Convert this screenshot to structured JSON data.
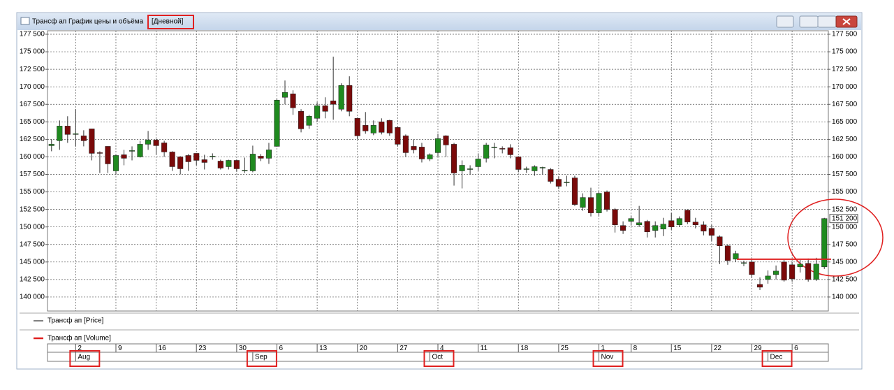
{
  "window_title": "Трансф ап График цены и объёма",
  "period": "[Дневной]",
  "chart_data": {
    "type": "candlestick",
    "series": [
      {
        "name": "Трансф ап [Price]",
        "color": "#000000",
        "up_color": "#1f8a1f",
        "down_color": "#7a0a0a",
        "open": [
          161600,
          162300,
          164400,
          163200,
          163000,
          164000,
          160600,
          161500,
          158000,
          160300,
          160800,
          160000,
          161800,
          162400,
          162000,
          160700,
          160000,
          160200,
          160500,
          159600,
          160000,
          159400,
          158600,
          159500,
          158000,
          158000,
          160100,
          159800,
          161500,
          168500,
          169000,
          166500,
          164500,
          165500,
          167300,
          168000,
          166800,
          170200,
          165500,
          164500,
          163400,
          165000,
          165200,
          164200,
          163000,
          161500,
          161400,
          159700,
          160600,
          163000,
          161800,
          158000,
          158200,
          158600,
          159800,
          161300,
          161200,
          161300,
          160000,
          158200,
          158000,
          158400,
          158200,
          156800,
          156300,
          157000,
          152800,
          154200,
          152000,
          155000,
          152500,
          150200,
          150800,
          150300,
          150800,
          149500,
          149700,
          150900,
          150300,
          152400,
          150700,
          150300,
          149800,
          148600,
          147300,
          145400,
          144800,
          145000,
          141800,
          142500,
          143200,
          145000,
          144600,
          144300,
          144800,
          142500,
          144300
        ],
        "high": [
          162500,
          165200,
          165800,
          166800,
          163800,
          164000,
          160800,
          161500,
          160300,
          161000,
          161500,
          162300,
          163700,
          162600,
          162300,
          160800,
          160100,
          160400,
          160500,
          160300,
          160500,
          159600,
          159600,
          159600,
          159900,
          161600,
          160400,
          162000,
          168300,
          170900,
          169500,
          166800,
          166000,
          167800,
          168500,
          174300,
          170500,
          171500,
          165600,
          166400,
          165200,
          165500,
          165300,
          164300,
          163200,
          162500,
          162000,
          160500,
          163300,
          163100,
          162000,
          159500,
          158800,
          160500,
          162000,
          162000,
          161500,
          161800,
          160100,
          158600,
          158800,
          158600,
          158400,
          157200,
          157300,
          157300,
          154800,
          155600,
          155000,
          155200,
          152700,
          150800,
          151600,
          153000,
          151000,
          150800,
          151300,
          152000,
          151500,
          152500,
          151300,
          150800,
          150300,
          148800,
          147500,
          146600,
          145200,
          145300,
          142800,
          143800,
          144500,
          145300,
          145000,
          145300,
          145500,
          145600,
          151300
        ],
        "low": [
          160800,
          161000,
          162000,
          161500,
          161500,
          159500,
          157700,
          157700,
          157500,
          158800,
          159500,
          159900,
          161000,
          160300,
          160000,
          158000,
          157500,
          158000,
          158800,
          158200,
          159600,
          158200,
          158200,
          157900,
          157700,
          157800,
          159400,
          159000,
          161500,
          167500,
          166000,
          163500,
          164000,
          165000,
          165500,
          165300,
          166500,
          165800,
          162500,
          163300,
          163100,
          163200,
          163000,
          161500,
          160000,
          160500,
          159200,
          159400,
          160000,
          160000,
          155900,
          155500,
          157500,
          158000,
          159200,
          159800,
          160500,
          159800,
          157800,
          157700,
          157300,
          157500,
          156200,
          155400,
          155800,
          153000,
          152300,
          151500,
          151500,
          152200,
          149200,
          149000,
          150200,
          150000,
          148500,
          148500,
          148700,
          149600,
          150000,
          150400,
          149800,
          148800,
          148000,
          144700,
          144600,
          145000,
          144400,
          142700,
          141000,
          141900,
          142500,
          142200,
          142200,
          143500,
          142200,
          142300,
          144000
        ],
        "close": [
          161800,
          164400,
          163200,
          163300,
          162300,
          160500,
          160500,
          159000,
          160200,
          159800,
          160900,
          161800,
          162400,
          161600,
          160700,
          158600,
          158300,
          159300,
          159500,
          159200,
          160100,
          158400,
          159500,
          158300,
          158100,
          160400,
          159800,
          161000,
          168100,
          169200,
          167000,
          164000,
          165800,
          167300,
          166500,
          167500,
          170200,
          166500,
          163000,
          163700,
          164500,
          163500,
          163400,
          161800,
          160600,
          161000,
          159700,
          160300,
          162600,
          161700,
          157700,
          158800,
          158300,
          159700,
          161700,
          161400,
          161100,
          160300,
          158200,
          158300,
          158600,
          158500,
          156500,
          155800,
          156400,
          153200,
          154200,
          152000,
          154800,
          152500,
          150300,
          149500,
          151200,
          150600,
          149300,
          150200,
          150400,
          150000,
          151200,
          150700,
          150300,
          149400,
          148800,
          147300,
          145200,
          146200,
          144900,
          143200,
          141400,
          143000,
          143700,
          142400,
          142600,
          144700,
          142500,
          144700,
          151200
        ]
      },
      {
        "name": "Трансф ап [Volume]",
        "color": "#e02020"
      }
    ],
    "categories": [
      null,
      null,
      null,
      "2",
      null,
      null,
      null,
      null,
      "9",
      null,
      null,
      null,
      null,
      "16",
      null,
      null,
      null,
      null,
      "23",
      null,
      null,
      null,
      null,
      "30",
      null,
      null,
      null,
      null,
      "6",
      null,
      null,
      null,
      null,
      "13",
      null,
      null,
      null,
      null,
      "20",
      null,
      null,
      null,
      null,
      "27",
      null,
      null,
      null,
      null,
      "4",
      null,
      null,
      null,
      null,
      "11",
      null,
      null,
      null,
      null,
      "18",
      null,
      null,
      null,
      null,
      "25",
      null,
      null,
      null,
      null,
      "1",
      null,
      null,
      null,
      "8",
      null,
      null,
      null,
      null,
      "15",
      null,
      null,
      null,
      null,
      "22",
      null,
      null,
      null,
      null,
      "29",
      null,
      null,
      null,
      null,
      "6",
      null,
      null,
      null,
      null
    ],
    "month_categories": [
      null,
      null,
      null,
      "Aug",
      null,
      null,
      null,
      null,
      null,
      null,
      null,
      null,
      null,
      null,
      null,
      null,
      null,
      null,
      null,
      null,
      null,
      null,
      null,
      null,
      null,
      "Sep",
      null,
      null,
      null,
      null,
      null,
      null,
      null,
      null,
      null,
      null,
      null,
      null,
      null,
      null,
      null,
      null,
      null,
      null,
      null,
      null,
      null,
      "Oct",
      null,
      null,
      null,
      null,
      null,
      null,
      null,
      null,
      null,
      null,
      null,
      null,
      null,
      null,
      null,
      null,
      null,
      null,
      null,
      null,
      "Nov",
      null,
      null,
      null,
      null,
      null,
      null,
      null,
      null,
      null,
      null,
      null,
      null,
      null,
      null,
      null,
      null,
      null,
      null,
      null,
      null,
      "Dec",
      null,
      null,
      null,
      null,
      null,
      null,
      null
    ],
    "ylim": [
      138000,
      178000
    ],
    "yticks": [
      {
        "value": 140000,
        "label": "140 000"
      },
      {
        "value": 142500,
        "label": "142 500"
      },
      {
        "value": 145000,
        "label": "145 000"
      },
      {
        "value": 147500,
        "label": "147 500"
      },
      {
        "value": 150000,
        "label": "150 000"
      },
      {
        "value": 152500,
        "label": "152 500"
      },
      {
        "value": 155000,
        "label": "155 000"
      },
      {
        "value": 157500,
        "label": "157 500"
      },
      {
        "value": 160000,
        "label": "160 000"
      },
      {
        "value": 162500,
        "label": "162 500"
      },
      {
        "value": 165000,
        "label": "165 000"
      },
      {
        "value": 167500,
        "label": "167 500"
      },
      {
        "value": 170000,
        "label": "170 000"
      },
      {
        "value": 172500,
        "label": "172 500"
      },
      {
        "value": 175000,
        "label": "175 000"
      },
      {
        "value": 177500,
        "label": "177 500"
      }
    ],
    "last_price": {
      "value": 151200,
      "label": "151 200"
    },
    "level_line": {
      "value": 145400,
      "color": "#e02020"
    },
    "grid": true
  }
}
